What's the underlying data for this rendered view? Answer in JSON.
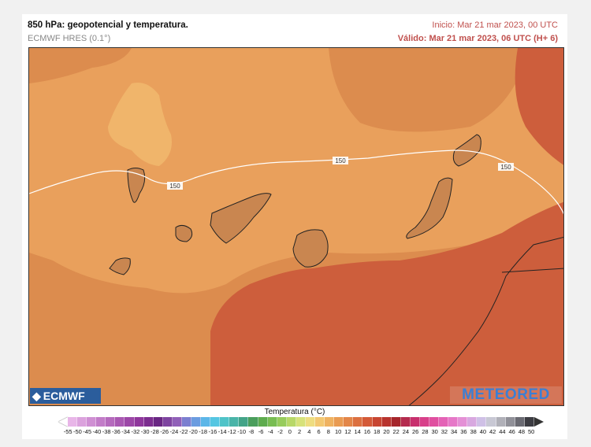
{
  "header": {
    "title": "850 hPa: geopotencial y temperatura.",
    "model": "ECMWF HRES (0.1°)",
    "start": "Inicio: Mar 21 mar 2023, 00 UTC",
    "valid": "Válido: Mar 21 mar 2023, 06 UTC (H+ 6)"
  },
  "map": {
    "contour_labels": [
      "150",
      "150",
      "150"
    ],
    "colors": {
      "warm_light": "#f0b56b",
      "warm_mid": "#e9a05c",
      "warm_orange": "#dc8c4e",
      "hot": "#cd5e3c",
      "contour": "#ffffff",
      "land_outline": "#222222"
    }
  },
  "logos": {
    "left": "ECMWF",
    "right": "METEORED"
  },
  "legend": {
    "title": "Temperatura (°C)",
    "labels": [
      "-55",
      "-50",
      "-45",
      "-40",
      "-38",
      "-36",
      "-34",
      "-32",
      "-30",
      "-28",
      "-26",
      "-24",
      "-22",
      "-20",
      "-18",
      "-16",
      "-14",
      "-12",
      "-10",
      "-8",
      "-6",
      "-4",
      "-2",
      "0",
      "2",
      "4",
      "6",
      "8",
      "10",
      "12",
      "14",
      "16",
      "18",
      "20",
      "22",
      "24",
      "26",
      "28",
      "30",
      "32",
      "34",
      "36",
      "38",
      "40",
      "42",
      "44",
      "46",
      "48",
      "50"
    ],
    "colors": [
      "#e8b6e8",
      "#dba2dd",
      "#cf8fd3",
      "#c27cc8",
      "#b56abd",
      "#a958b2",
      "#9c47a7",
      "#8f379c",
      "#7c2d8f",
      "#692683",
      "#7e44a0",
      "#9060b8",
      "#7b7fd0",
      "#6b9ce0",
      "#5cb6e8",
      "#55c6e2",
      "#4fc3c8",
      "#49b4a8",
      "#43a488",
      "#4a9e5c",
      "#5eac4e",
      "#78bd52",
      "#97cc5c",
      "#b8d868",
      "#d7e27a",
      "#eedd80",
      "#f3c872",
      "#efb261",
      "#e99b52",
      "#e38648",
      "#dc7040",
      "#d45a38",
      "#c84632",
      "#b8342e",
      "#a6262c",
      "#b42b4e",
      "#c8306e",
      "#d8408a",
      "#e04fa0",
      "#e462b6",
      "#e678c8",
      "#e490d6",
      "#d8a8e0",
      "#cfc0e6",
      "#c8c8d4",
      "#b0b0b8",
      "#909098",
      "#6a6a72",
      "#3c3c42"
    ]
  }
}
